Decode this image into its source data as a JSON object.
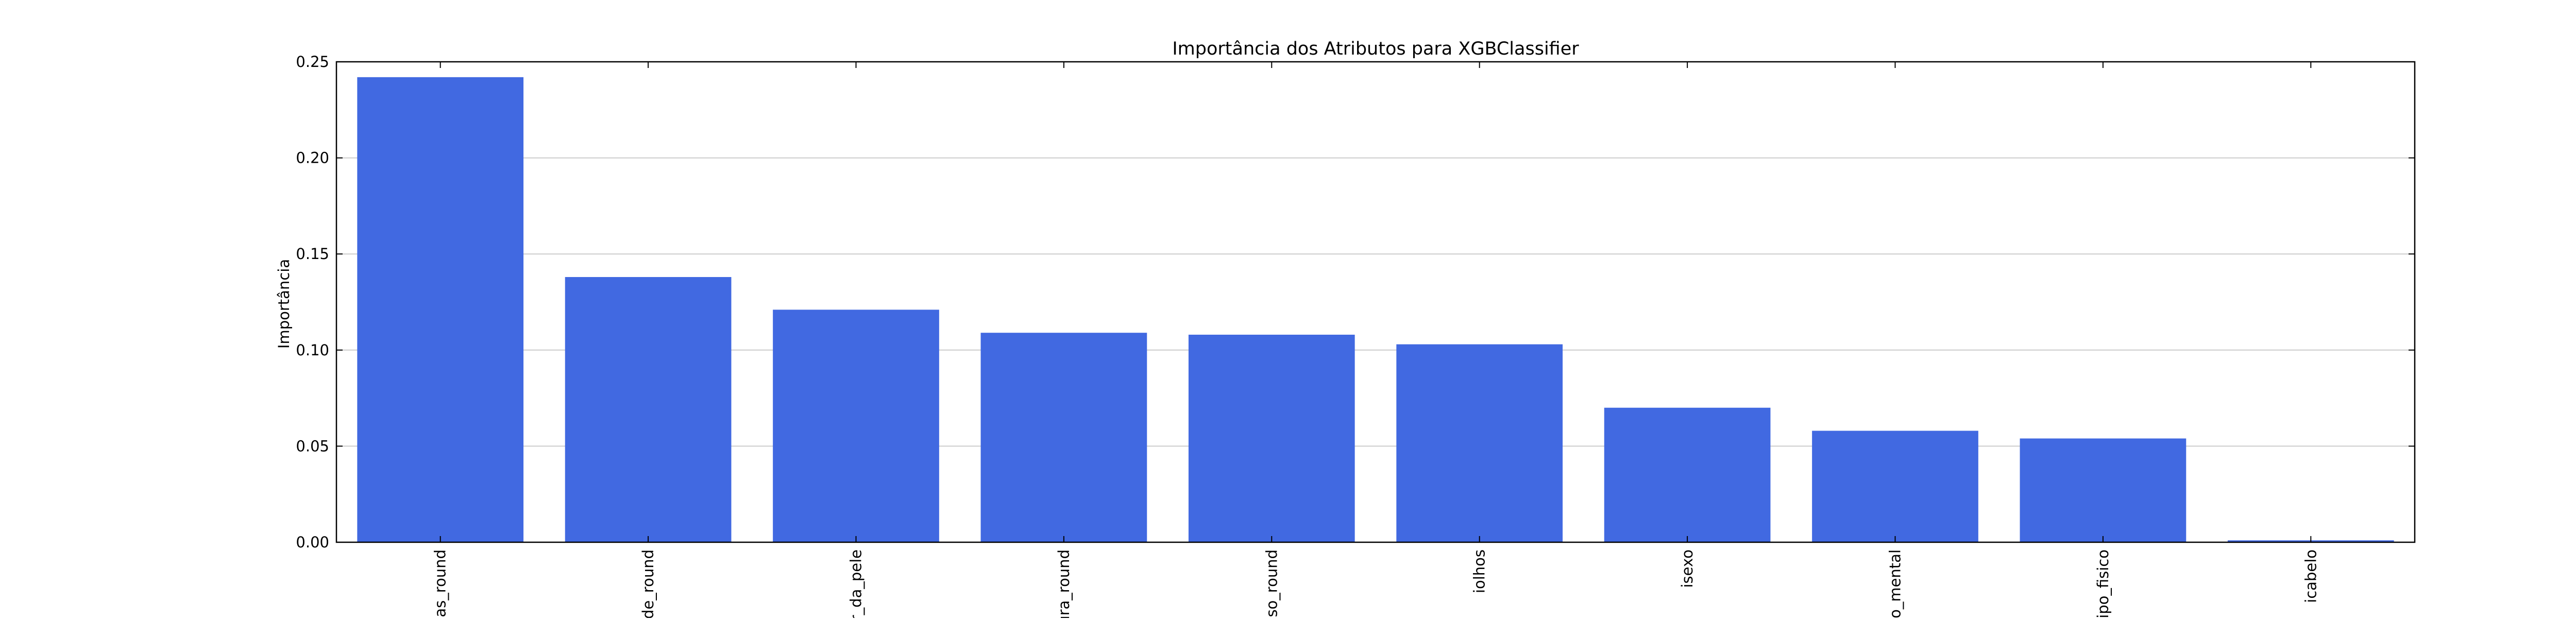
{
  "chart_data": {
    "type": "bar",
    "title": "Importância dos Atributos para XGBClassifier",
    "xlabel": "",
    "ylabel": "Importância",
    "categories": [
      "ias_round",
      "de_round",
      "r_da_pele",
      "ura_round",
      "eso_round",
      "iolhos",
      "isexo",
      "no_mental",
      "tipo_fisico",
      "icabelo"
    ],
    "values": [
      0.242,
      0.138,
      0.121,
      0.109,
      0.108,
      0.103,
      0.07,
      0.058,
      0.054,
      0.001
    ],
    "ylim": [
      0,
      0.25
    ],
    "yticks": [
      "0.00",
      "0.05",
      "0.10",
      "0.15",
      "0.20",
      "0.25"
    ],
    "grid": "horizontal",
    "bar_color": "#4169e1",
    "gridline_color": "#cccccc",
    "axis_color": "#000000"
  }
}
